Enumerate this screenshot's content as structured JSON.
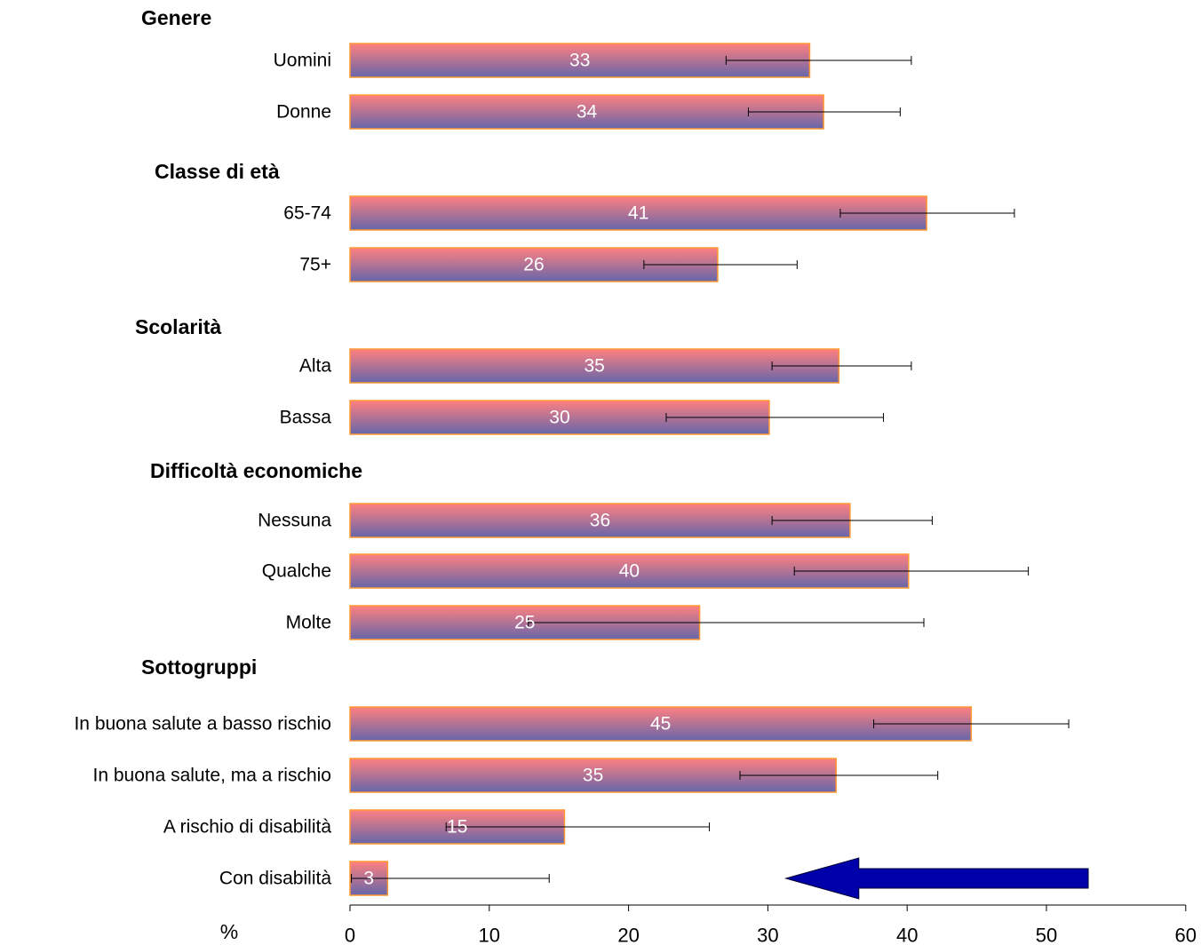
{
  "chart_data": {
    "type": "bar",
    "orientation": "horizontal",
    "unit_label": "%",
    "xlim": [
      0,
      60
    ],
    "x_ticks": [
      "0",
      "10",
      "20",
      "30",
      "40",
      "50",
      "60"
    ],
    "grid": false,
    "groups": [
      {
        "label": "Genere",
        "items": [
          {
            "label": "Uomini",
            "value": 33,
            "value_label": "33",
            "ci_low": 27,
            "ci_high": 40.3
          },
          {
            "label": "Donne",
            "value": 34,
            "value_label": "34",
            "ci_low": 28.6,
            "ci_high": 39.5
          }
        ]
      },
      {
        "label": "Classe di età",
        "items": [
          {
            "label": "65-74",
            "value": 41.4,
            "value_label": "41",
            "ci_low": 35.2,
            "ci_high": 47.7
          },
          {
            "label": "75+",
            "value": 26.4,
            "value_label": "26",
            "ci_low": 21.1,
            "ci_high": 32.1
          }
        ]
      },
      {
        "label": "Scolarità",
        "items": [
          {
            "label": "Alta",
            "value": 35.1,
            "value_label": "35",
            "ci_low": 30.3,
            "ci_high": 40.3
          },
          {
            "label": "Bassa",
            "value": 30.1,
            "value_label": "30",
            "ci_low": 22.7,
            "ci_high": 38.3
          }
        ]
      },
      {
        "label": "Difficoltà economiche",
        "items": [
          {
            "label": "Nessuna",
            "value": 35.9,
            "value_label": "36",
            "ci_low": 30.3,
            "ci_high": 41.8
          },
          {
            "label": "Qualche",
            "value": 40.1,
            "value_label": "40",
            "ci_low": 31.9,
            "ci_high": 48.7
          },
          {
            "label": "Molte",
            "value": 25.1,
            "value_label": "25",
            "ci_low": 12.8,
            "ci_high": 41.2
          }
        ]
      },
      {
        "label": "Sottogruppi",
        "items": [
          {
            "label": "In buona salute a basso rischio",
            "value": 44.6,
            "value_label": "45",
            "ci_low": 37.6,
            "ci_high": 51.6
          },
          {
            "label": "In buona salute, ma a rischio",
            "value": 34.9,
            "value_label": "35",
            "ci_low": 28,
            "ci_high": 42.2
          },
          {
            "label": "A rischio di disabilità",
            "value": 15.4,
            "value_label": "15",
            "ci_low": 6.9,
            "ci_high": 25.8
          },
          {
            "label": "Con disabilità",
            "value": 2.7,
            "value_label": "3",
            "ci_low": 0.1,
            "ci_high": 14.3
          }
        ]
      }
    ],
    "bar_gradient": [
      "#ff8080",
      "#6666aa"
    ],
    "bar_border_color": "#ff9933",
    "arrow": {
      "direction": "left",
      "color": "#0000aa",
      "x_from": 53,
      "x_to": 31.3,
      "row": "Con disabilità"
    }
  }
}
